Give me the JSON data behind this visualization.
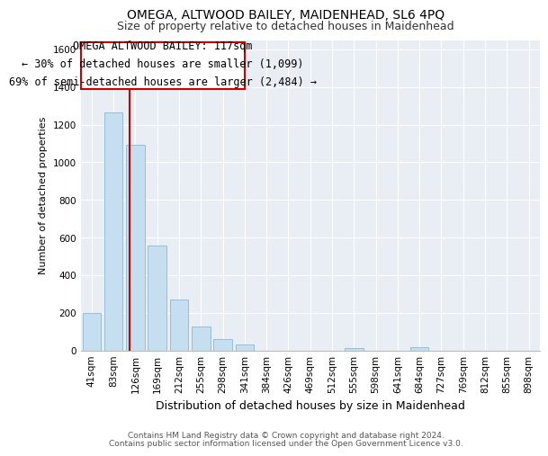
{
  "title": "OMEGA, ALTWOOD BAILEY, MAIDENHEAD, SL6 4PQ",
  "subtitle": "Size of property relative to detached houses in Maidenhead",
  "xlabel": "Distribution of detached houses by size in Maidenhead",
  "ylabel": "Number of detached properties",
  "footnote1": "Contains HM Land Registry data © Crown copyright and database right 2024.",
  "footnote2": "Contains public sector information licensed under the Open Government Licence v3.0.",
  "bar_labels": [
    "41sqm",
    "83sqm",
    "126sqm",
    "169sqm",
    "212sqm",
    "255sqm",
    "298sqm",
    "341sqm",
    "384sqm",
    "426sqm",
    "469sqm",
    "512sqm",
    "555sqm",
    "598sqm",
    "641sqm",
    "684sqm",
    "727sqm",
    "769sqm",
    "812sqm",
    "855sqm",
    "898sqm"
  ],
  "bar_values": [
    200,
    1265,
    1095,
    555,
    270,
    125,
    60,
    30,
    0,
    0,
    0,
    0,
    10,
    0,
    0,
    15,
    0,
    0,
    0,
    0,
    0
  ],
  "bar_color": "#c5dff0",
  "bar_edge_color": "#9bbdd4",
  "annotation_line_bin": 1.72,
  "annotation_box_text": "OMEGA ALTWOOD BAILEY: 117sqm\n← 30% of detached houses are smaller (1,099)\n69% of semi-detached houses are larger (2,484) →",
  "ylim": [
    0,
    1650
  ],
  "yticks": [
    0,
    200,
    400,
    600,
    800,
    1000,
    1200,
    1400,
    1600
  ],
  "red_line_color": "#cc0000",
  "box_edge_color": "#cc0000",
  "background_color": "#e8eef4",
  "grid_color": "#ffffff",
  "title_fontsize": 10,
  "subtitle_fontsize": 9,
  "annotation_fontsize": 8.5,
  "ylabel_fontsize": 8,
  "xlabel_fontsize": 9,
  "tick_fontsize": 7.5,
  "footnote_fontsize": 6.5
}
